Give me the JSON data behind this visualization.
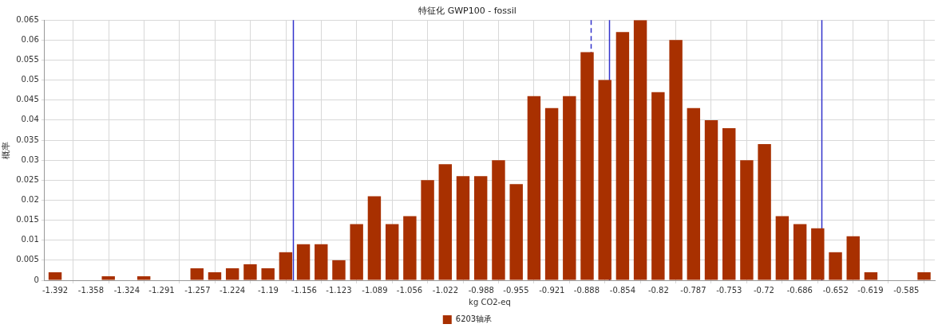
{
  "chart_data": {
    "type": "histogram",
    "title": "特征化 GWP100 - fossil",
    "xlabel": "kg CO2-eq",
    "ylabel": "概率",
    "bins": [
      -1.4004,
      -1.3836,
      -1.3668,
      -1.35,
      -1.3331,
      -1.3163,
      -1.2995,
      -1.2827,
      -1.2659,
      -1.2491,
      -1.2323,
      -1.2155,
      -1.1986,
      -1.1818,
      -1.165,
      -1.1482,
      -1.1314,
      -1.1146,
      -1.0978,
      -1.0809,
      -1.0641,
      -1.0473,
      -1.0305,
      -1.0137,
      -0.9969,
      -0.9801,
      -0.9632,
      -0.9464,
      -0.9296,
      -0.9128,
      -0.896,
      -0.8792,
      -0.8624,
      -0.8456,
      -0.8288,
      -0.8119,
      -0.7951,
      -0.7783,
      -0.7615,
      -0.7447,
      -0.7279,
      -0.7111,
      -0.6942,
      -0.6774,
      -0.6606,
      -0.6438,
      -0.627,
      -0.6102,
      -0.5934,
      -0.5766,
      -0.5598
    ],
    "series": [
      {
        "name": "6203轴承",
        "color": "#a83000",
        "values": [
          0.002,
          0,
          0,
          0.001,
          0,
          0.001,
          0,
          0,
          0.003,
          0.002,
          0.003,
          0.004,
          0.003,
          0.007,
          0.009,
          0.009,
          0.005,
          0.014,
          0.021,
          0.014,
          0.016,
          0.025,
          0.029,
          0.026,
          0.026,
          0.03,
          0.024,
          0.046,
          0.043,
          0.046,
          0.057,
          0.05,
          0.062,
          0.065,
          0.047,
          0.06,
          0.043,
          0.04,
          0.038,
          0.03,
          0.034,
          0.016,
          0.014,
          0.013,
          0.007,
          0.011,
          0.002,
          0,
          0,
          0.002
        ]
      }
    ],
    "xlim": [
      -1.402,
      -0.558
    ],
    "xticks": [
      -1.392,
      -1.358,
      -1.324,
      -1.291,
      -1.257,
      -1.224,
      -1.19,
      -1.156,
      -1.123,
      -1.089,
      -1.056,
      -1.022,
      -0.988,
      -0.955,
      -0.921,
      -0.888,
      -0.854,
      -0.82,
      -0.787,
      -0.753,
      -0.72,
      -0.686,
      -0.652,
      -0.619,
      -0.585
    ],
    "ylim": [
      0,
      0.065
    ],
    "yticks": [
      0,
      0.005,
      0.01,
      0.015,
      0.02,
      0.025,
      0.03,
      0.035,
      0.04,
      0.045,
      0.05,
      0.055,
      0.06,
      0.065
    ],
    "grid": true,
    "legend": "bottom",
    "ref_lines": [
      {
        "axis": "x",
        "value": -1.1664,
        "color": "#3333cc"
      },
      {
        "axis": "x",
        "value": -0.8841,
        "color": "#3333cc",
        "line_style": "dashed"
      },
      {
        "axis": "x",
        "value": -0.8667,
        "color": "#3333cc"
      },
      {
        "axis": "x",
        "value": -0.6654,
        "color": "#3333cc"
      }
    ]
  }
}
